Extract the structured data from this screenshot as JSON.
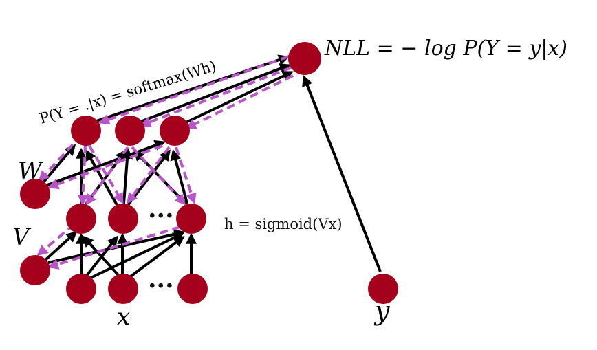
{
  "colors": {
    "node": "#a5001c",
    "forward_edge": "#000000",
    "backward_edge": "#b855c8",
    "background": "#ffffff"
  },
  "labels": {
    "nll_formula": "NLL = − log P(Y = y|x)",
    "output_formula": "P(Y = .|x) = softmax(Wh)",
    "hidden_formula": "h = sigmoid(Vx)",
    "w_label": "W",
    "v_label": "V",
    "x_label": "x",
    "y_label": "y",
    "hidden_ellipsis": "···",
    "input_ellipsis": "···"
  }
}
